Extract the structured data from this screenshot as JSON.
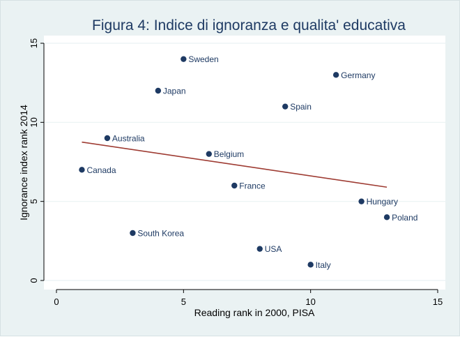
{
  "chart_data": {
    "type": "scatter",
    "title": "Figura 4: Indice di ignoranza e qualita' educativa",
    "xlabel": "Reading rank in 2000, PISA",
    "ylabel": "Ignorance index rank 2014",
    "xlim": [
      0,
      15
    ],
    "ylim": [
      0,
      15
    ],
    "xticks": [
      0,
      5,
      10,
      15
    ],
    "yticks": [
      0,
      5,
      10,
      15
    ],
    "grid": "horizontal",
    "points": [
      {
        "label": "Canada",
        "x": 1,
        "y": 7
      },
      {
        "label": "Australia",
        "x": 2,
        "y": 9
      },
      {
        "label": "South Korea",
        "x": 3,
        "y": 3
      },
      {
        "label": "Japan",
        "x": 4,
        "y": 12
      },
      {
        "label": "Sweden",
        "x": 5,
        "y": 14
      },
      {
        "label": "Belgium",
        "x": 6,
        "y": 8
      },
      {
        "label": "France",
        "x": 7,
        "y": 6
      },
      {
        "label": "USA",
        "x": 8,
        "y": 2
      },
      {
        "label": "Spain",
        "x": 9,
        "y": 11
      },
      {
        "label": "Italy",
        "x": 10,
        "y": 1
      },
      {
        "label": "Germany",
        "x": 11,
        "y": 13
      },
      {
        "label": "Hungary",
        "x": 12,
        "y": 5
      },
      {
        "label": "Poland",
        "x": 13,
        "y": 4
      }
    ],
    "fit_line": {
      "x": [
        1,
        13
      ],
      "y": [
        8.75,
        5.9
      ]
    },
    "colors": {
      "marker": "#1e3a63",
      "fit_line": "#9e3b32",
      "background": "#eaf2f3",
      "plot_area": "#ffffff",
      "grid": "#eaf2f3",
      "title": "#1e3a63"
    }
  }
}
